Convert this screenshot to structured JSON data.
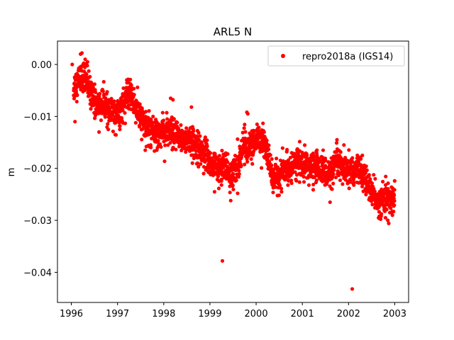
{
  "chart_data": {
    "type": "scatter",
    "title": "ARL5 N",
    "xlabel": "",
    "ylabel": "m",
    "xlim": [
      1995.7,
      2003.3
    ],
    "ylim": [
      -0.0458,
      0.0045
    ],
    "x_ticks": [
      "1996",
      "1997",
      "1998",
      "1999",
      "2000",
      "2001",
      "2002",
      "2003"
    ],
    "y_ticks": [
      "0.00",
      "−0.01",
      "−0.02",
      "−0.03",
      "−0.04"
    ],
    "grid": false,
    "legend_position": "top-right",
    "marker_color": "#ff0000",
    "series": [
      {
        "name": "repro2018a (IGS14)",
        "trend": [
          [
            1996.05,
            -0.0045
          ],
          [
            1996.15,
            -0.003
          ],
          [
            1996.25,
            -0.002
          ],
          [
            1996.35,
            -0.004
          ],
          [
            1996.45,
            -0.006
          ],
          [
            1996.55,
            -0.008
          ],
          [
            1996.7,
            -0.0075
          ],
          [
            1996.85,
            -0.0095
          ],
          [
            1997.0,
            -0.0095
          ],
          [
            1997.1,
            -0.008
          ],
          [
            1997.2,
            -0.006
          ],
          [
            1997.3,
            -0.006
          ],
          [
            1997.4,
            -0.0085
          ],
          [
            1997.5,
            -0.01
          ],
          [
            1997.6,
            -0.012
          ],
          [
            1997.75,
            -0.0125
          ],
          [
            1997.9,
            -0.013
          ],
          [
            1998.05,
            -0.013
          ],
          [
            1998.2,
            -0.0135
          ],
          [
            1998.35,
            -0.014
          ],
          [
            1998.5,
            -0.0145
          ],
          [
            1998.65,
            -0.015
          ],
          [
            1998.8,
            -0.0165
          ],
          [
            1998.95,
            -0.018
          ],
          [
            1999.1,
            -0.0195
          ],
          [
            1999.2,
            -0.0205
          ],
          [
            1999.3,
            -0.019
          ],
          [
            1999.45,
            -0.0215
          ],
          [
            1999.55,
            -0.0205
          ],
          [
            1999.65,
            -0.018
          ],
          [
            1999.75,
            -0.015
          ],
          [
            1999.85,
            -0.0165
          ],
          [
            1999.95,
            -0.015
          ],
          [
            2000.05,
            -0.014
          ],
          [
            2000.15,
            -0.015
          ],
          [
            2000.25,
            -0.0165
          ],
          [
            2000.35,
            -0.0215
          ],
          [
            2000.45,
            -0.022
          ],
          [
            2000.6,
            -0.0205
          ],
          [
            2000.75,
            -0.0195
          ],
          [
            2000.9,
            -0.0185
          ],
          [
            2001.0,
            -0.0195
          ],
          [
            2001.15,
            -0.02
          ],
          [
            2001.3,
            -0.0195
          ],
          [
            2001.45,
            -0.0205
          ],
          [
            2001.6,
            -0.021
          ],
          [
            2001.75,
            -0.019
          ],
          [
            2001.9,
            -0.0205
          ],
          [
            2002.05,
            -0.021
          ],
          [
            2002.2,
            -0.02
          ],
          [
            2002.35,
            -0.022
          ],
          [
            2002.5,
            -0.0245
          ],
          [
            2002.65,
            -0.0265
          ],
          [
            2002.8,
            -0.0255
          ],
          [
            2002.9,
            -0.026
          ],
          [
            2003.0,
            -0.026
          ]
        ],
        "points": [
          [
            1996.02,
            0.0
          ],
          [
            1996.08,
            -0.011
          ],
          [
            1996.2,
            0.002
          ],
          [
            1996.23,
            0.0022
          ],
          [
            1996.3,
            0.001
          ],
          [
            1996.35,
            0.0005
          ],
          [
            1996.6,
            -0.013
          ],
          [
            1996.8,
            -0.0125
          ],
          [
            1996.95,
            -0.0135
          ],
          [
            1997.05,
            -0.0125
          ],
          [
            1997.2,
            -0.003
          ],
          [
            1997.3,
            -0.004
          ],
          [
            1997.6,
            -0.0165
          ],
          [
            1997.85,
            -0.0165
          ],
          [
            1998.15,
            -0.0065
          ],
          [
            1998.2,
            -0.0068
          ],
          [
            1998.6,
            -0.0082
          ],
          [
            1998.9,
            -0.014
          ],
          [
            1999.0,
            -0.0185
          ],
          [
            1999.1,
            -0.0245
          ],
          [
            1999.25,
            -0.0232
          ],
          [
            1999.27,
            -0.0378
          ],
          [
            1999.45,
            -0.0262
          ],
          [
            1999.6,
            -0.0248
          ],
          [
            1999.8,
            -0.0092
          ],
          [
            1999.82,
            -0.0095
          ],
          [
            2000.1,
            -0.0135
          ],
          [
            2000.55,
            -0.0245
          ],
          [
            2001.1,
            -0.0175
          ],
          [
            2001.45,
            -0.0165
          ],
          [
            2001.6,
            -0.0265
          ],
          [
            2001.75,
            -0.0145
          ],
          [
            2001.9,
            -0.0155
          ],
          [
            2002.08,
            -0.0432
          ],
          [
            2002.3,
            -0.0175
          ],
          [
            2002.55,
            -0.0245
          ],
          [
            2002.65,
            -0.0295
          ],
          [
            2002.8,
            -0.0295
          ],
          [
            2002.85,
            -0.03
          ],
          [
            2002.95,
            -0.029
          ]
        ]
      }
    ]
  }
}
